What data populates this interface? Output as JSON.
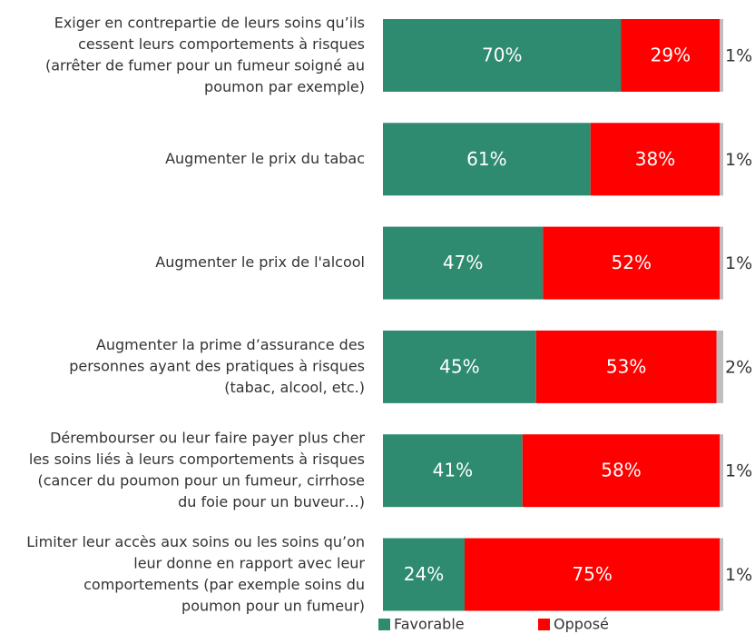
{
  "chart_data": {
    "type": "stacked-bar-horizontal",
    "categories": [
      [
        "Exiger en contrepartie de leurs soins qu’ils",
        "cessent leurs comportements à risques",
        "(arrêter de fumer pour un fumeur soigné au",
        "poumon par exemple)"
      ],
      [
        "Augmenter le prix du tabac"
      ],
      [
        "Augmenter le prix de l'alcool"
      ],
      [
        "Augmenter la prime d’assurance des",
        "personnes ayant des pratiques à risques",
        "(tabac, alcool, etc.)"
      ],
      [
        "Dérembourser ou leur faire payer plus cher",
        "les soins liés à leurs comportements à risques",
        "(cancer du poumon pour un fumeur, cirrhose",
        "du foie pour un buveur…)"
      ],
      [
        "Limiter leur accès aux soins ou les soins qu’on",
        "leur donne en rapport avec leur",
        "comportements (par exemple soins du",
        "poumon pour un fumeur)"
      ]
    ],
    "series": [
      {
        "name": "Favorable",
        "color": "#2e8b6f",
        "values": [
          70,
          61,
          47,
          45,
          41,
          24
        ],
        "value_labels": [
          "70%",
          "61%",
          "47%",
          "45%",
          "41%",
          "24%"
        ]
      },
      {
        "name": "Opposé",
        "color": "#ff0000",
        "values": [
          29,
          38,
          52,
          53,
          58,
          75
        ],
        "value_labels": [
          "29%",
          "38%",
          "52%",
          "53%",
          "58%",
          "75%"
        ]
      },
      {
        "color": "#bfbfbf",
        "values": [
          1,
          1,
          1,
          2,
          1,
          1
        ],
        "value_labels": [
          "1%",
          "1%",
          "1%",
          "2%",
          "1%",
          "1%"
        ]
      }
    ],
    "xlim": [
      0,
      100
    ],
    "legend": "bottom"
  }
}
